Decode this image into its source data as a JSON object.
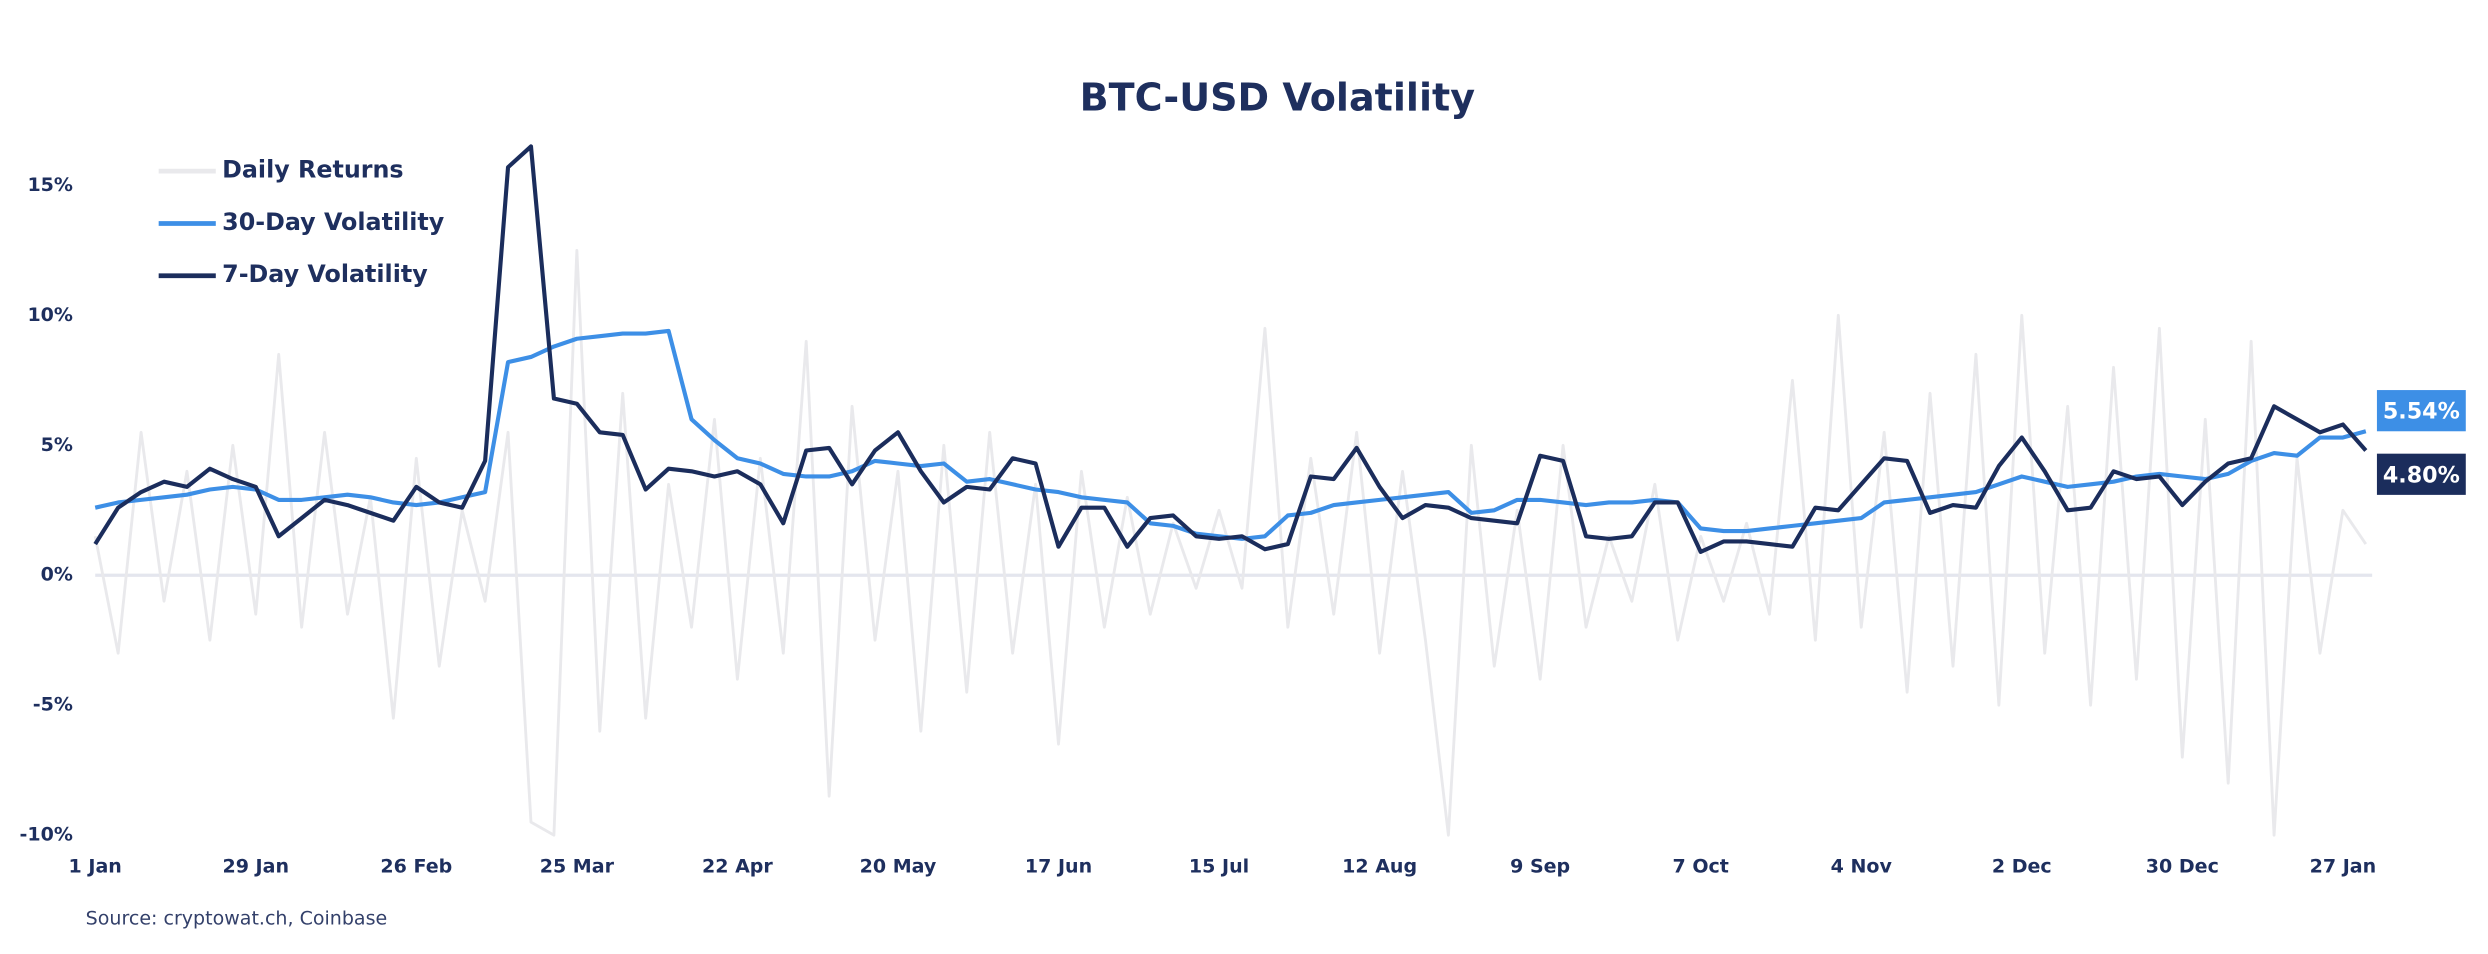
{
  "chart_data": {
    "type": "line",
    "title": "BTC-USD Volatility",
    "source": "Source: cryptowat.ch, Coinbase",
    "categories": [
      "1 Jan",
      null,
      null,
      null,
      null,
      null,
      null,
      "29 Jan",
      null,
      null,
      null,
      null,
      null,
      null,
      "26 Feb",
      null,
      null,
      null,
      null,
      null,
      null,
      "25 Mar",
      null,
      null,
      null,
      null,
      null,
      null,
      "22 Apr",
      null,
      null,
      null,
      null,
      null,
      null,
      "20 May",
      null,
      null,
      null,
      null,
      null,
      null,
      "17 Jun",
      null,
      null,
      null,
      null,
      null,
      null,
      "15 Jul",
      null,
      null,
      null,
      null,
      null,
      null,
      "12 Aug",
      null,
      null,
      null,
      null,
      null,
      null,
      "9 Sep",
      null,
      null,
      null,
      null,
      null,
      null,
      "7 Oct",
      null,
      null,
      null,
      null,
      null,
      null,
      "4 Nov",
      null,
      null,
      null,
      null,
      null,
      null,
      "2 Dec",
      null,
      null,
      null,
      null,
      null,
      null,
      "30 Dec",
      null,
      null,
      null,
      null,
      null,
      null,
      "27 Jan",
      null
    ],
    "series": [
      {
        "name": "Daily Returns",
        "color": "#e9e9ec",
        "values": [
          1.5,
          -3.0,
          5.5,
          -1.0,
          4.0,
          -2.5,
          5.0,
          -1.5,
          8.5,
          -2.0,
          5.5,
          -1.5,
          3.0,
          -5.5,
          4.5,
          -3.5,
          2.5,
          -1.0,
          5.5,
          -9.5,
          -10,
          12.5,
          -6.0,
          7.0,
          -5.5,
          3.5,
          -2.0,
          6.0,
          -4.0,
          4.5,
          -3.0,
          9.0,
          -8.5,
          6.5,
          -2.5,
          4.0,
          -6.0,
          5.0,
          -4.5,
          5.5,
          -3.0,
          3.5,
          -6.5,
          4.0,
          -2.0,
          3.0,
          -1.5,
          2.0,
          -0.5,
          2.5,
          -0.5,
          9.5,
          -2.0,
          4.5,
          -1.5,
          5.5,
          -3.0,
          4.0,
          -2.5,
          -10,
          5.0,
          -3.5,
          2.5,
          -4.0,
          5.0,
          -2.0,
          1.5,
          -1.0,
          3.5,
          -2.5,
          1.5,
          -1.0,
          2.0,
          -1.5,
          7.5,
          -2.5,
          10,
          -2.0,
          5.5,
          -4.5,
          7.0,
          -3.5,
          8.5,
          -5.0,
          10,
          -3.0,
          6.5,
          -5.0,
          8.0,
          -4.0,
          9.5,
          -7.0,
          6.0,
          -8.0,
          9.0,
          -10,
          4.5,
          -3.0,
          2.5,
          1.2
        ]
      },
      {
        "name": "30-Day Volatility",
        "color": "#3d8fe6",
        "values": [
          2.6,
          2.8,
          2.9,
          3.0,
          3.1,
          3.3,
          3.4,
          3.3,
          2.9,
          2.9,
          3.0,
          3.1,
          3.0,
          2.8,
          2.7,
          2.8,
          3.0,
          3.2,
          8.2,
          8.4,
          8.8,
          9.1,
          9.2,
          9.3,
          9.3,
          9.4,
          6.0,
          5.2,
          4.5,
          4.3,
          3.9,
          3.8,
          3.8,
          4.0,
          4.4,
          4.3,
          4.2,
          4.3,
          3.6,
          3.7,
          3.5,
          3.3,
          3.2,
          3.0,
          2.9,
          2.8,
          2.0,
          1.9,
          1.6,
          1.5,
          1.4,
          1.5,
          2.3,
          2.4,
          2.7,
          2.8,
          2.9,
          3.0,
          3.1,
          3.2,
          2.4,
          2.5,
          2.9,
          2.9,
          2.8,
          2.7,
          2.8,
          2.8,
          2.9,
          2.8,
          1.8,
          1.7,
          1.7,
          1.8,
          1.9,
          2.0,
          2.1,
          2.2,
          2.8,
          2.9,
          3.0,
          3.1,
          3.2,
          3.5,
          3.8,
          3.6,
          3.4,
          3.5,
          3.6,
          3.8,
          3.9,
          3.8,
          3.7,
          3.9,
          4.4,
          4.7,
          4.6,
          5.3,
          5.3,
          5.54
        ],
        "value_labels": [
          null,
          null,
          null,
          null,
          null,
          null,
          null,
          null,
          null,
          null,
          null,
          null,
          null,
          null,
          null,
          null,
          null,
          null,
          null,
          null,
          null,
          null,
          null,
          null,
          null,
          null,
          null,
          null,
          null,
          null,
          null,
          null,
          null,
          null,
          null,
          null,
          null,
          null,
          null,
          null,
          null,
          null,
          null,
          null,
          null,
          null,
          null,
          null,
          null,
          null,
          null,
          null,
          null,
          null,
          null,
          null,
          null,
          null,
          null,
          null,
          null,
          null,
          null,
          null,
          null,
          null,
          null,
          null,
          null,
          null,
          null,
          null,
          null,
          null,
          null,
          null,
          null,
          null,
          null,
          null,
          null,
          null,
          null,
          null,
          null,
          null,
          null,
          null,
          null,
          null,
          null,
          null,
          null,
          null,
          null,
          null,
          null,
          null,
          null,
          "5.54%"
        ]
      },
      {
        "name": "7-Day Volatility",
        "color": "#1b2d5c",
        "values": [
          1.2,
          2.6,
          3.2,
          3.6,
          3.4,
          4.1,
          3.7,
          3.4,
          1.5,
          2.2,
          2.9,
          2.7,
          2.4,
          2.1,
          3.4,
          2.8,
          2.6,
          4.4,
          15.7,
          16.5,
          6.8,
          6.6,
          5.5,
          5.4,
          3.3,
          4.1,
          4.0,
          3.8,
          4.0,
          3.5,
          2.0,
          4.8,
          4.9,
          3.5,
          4.8,
          5.5,
          4.0,
          2.8,
          3.4,
          3.3,
          4.5,
          4.3,
          1.1,
          2.6,
          2.6,
          1.1,
          2.2,
          2.3,
          1.5,
          1.4,
          1.5,
          1.0,
          1.2,
          3.8,
          3.7,
          4.9,
          3.4,
          2.2,
          2.7,
          2.6,
          2.2,
          2.1,
          2.0,
          4.6,
          4.4,
          1.5,
          1.4,
          1.5,
          2.8,
          2.8,
          0.9,
          1.3,
          1.3,
          1.2,
          1.1,
          2.6,
          2.5,
          3.5,
          4.5,
          4.4,
          2.4,
          2.7,
          2.6,
          4.2,
          5.3,
          4.0,
          2.5,
          2.6,
          4.0,
          3.7,
          3.8,
          2.7,
          3.6,
          4.3,
          4.5,
          6.5,
          6.0,
          5.5,
          5.8,
          4.8
        ],
        "value_labels": [
          null,
          null,
          null,
          null,
          null,
          null,
          null,
          null,
          null,
          null,
          null,
          null,
          null,
          null,
          null,
          null,
          null,
          null,
          null,
          null,
          null,
          null,
          null,
          null,
          null,
          null,
          null,
          null,
          null,
          null,
          null,
          null,
          null,
          null,
          null,
          null,
          null,
          null,
          null,
          null,
          null,
          null,
          null,
          null,
          null,
          null,
          null,
          null,
          null,
          null,
          null,
          null,
          null,
          null,
          null,
          null,
          null,
          null,
          null,
          null,
          null,
          null,
          null,
          null,
          null,
          null,
          null,
          null,
          null,
          null,
          null,
          null,
          null,
          null,
          null,
          null,
          null,
          null,
          null,
          null,
          null,
          null,
          null,
          null,
          null,
          null,
          null,
          null,
          null,
          null,
          null,
          null,
          null,
          null,
          null,
          null,
          null,
          null,
          null,
          "4.80%"
        ]
      }
    ],
    "ylim": [
      -10,
      17.5
    ],
    "yticks": [
      {
        "value": -10,
        "label": "-10%"
      },
      {
        "value": -5,
        "label": "-5%"
      },
      {
        "value": 0,
        "label": "0%"
      },
      {
        "value": 5,
        "label": "5%"
      },
      {
        "value": 10,
        "label": "10%"
      },
      {
        "value": 15,
        "label": "15%"
      }
    ],
    "grid": false,
    "legend": "top-left"
  }
}
